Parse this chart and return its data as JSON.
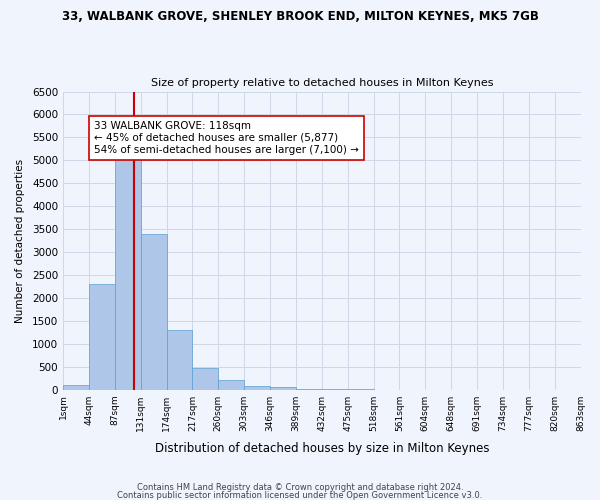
{
  "title": "33, WALBANK GROVE, SHENLEY BROOK END, MILTON KEYNES, MK5 7GB",
  "subtitle": "Size of property relative to detached houses in Milton Keynes",
  "xlabel": "Distribution of detached houses by size in Milton Keynes",
  "ylabel": "Number of detached properties",
  "bin_labels": [
    "1sqm",
    "44sqm",
    "87sqm",
    "131sqm",
    "174sqm",
    "217sqm",
    "260sqm",
    "303sqm",
    "346sqm",
    "389sqm",
    "432sqm",
    "475sqm",
    "518sqm",
    "561sqm",
    "604sqm",
    "648sqm",
    "691sqm",
    "734sqm",
    "777sqm",
    "820sqm",
    "863sqm"
  ],
  "bar_values": [
    100,
    2300,
    5400,
    3400,
    1300,
    480,
    200,
    80,
    60,
    20,
    10,
    5,
    3,
    2,
    1,
    1,
    0,
    0,
    0,
    0
  ],
  "bar_color": "#aec6e8",
  "bar_edge_color": "#5a9fd4",
  "vline_x": 2.73,
  "vline_color": "#cc0000",
  "annotation_text": "33 WALBANK GROVE: 118sqm\n← 45% of detached houses are smaller (5,877)\n54% of semi-detached houses are larger (7,100) →",
  "annotation_box_color": "#ffffff",
  "annotation_box_edge": "#cc0000",
  "ylim": [
    0,
    6500
  ],
  "yticks": [
    0,
    500,
    1000,
    1500,
    2000,
    2500,
    3000,
    3500,
    4000,
    4500,
    5000,
    5500,
    6000,
    6500
  ],
  "grid_color": "#d0d8e8",
  "footnote1": "Contains HM Land Registry data © Crown copyright and database right 2024.",
  "footnote2": "Contains public sector information licensed under the Open Government Licence v3.0.",
  "bg_color": "#f0f4fc"
}
